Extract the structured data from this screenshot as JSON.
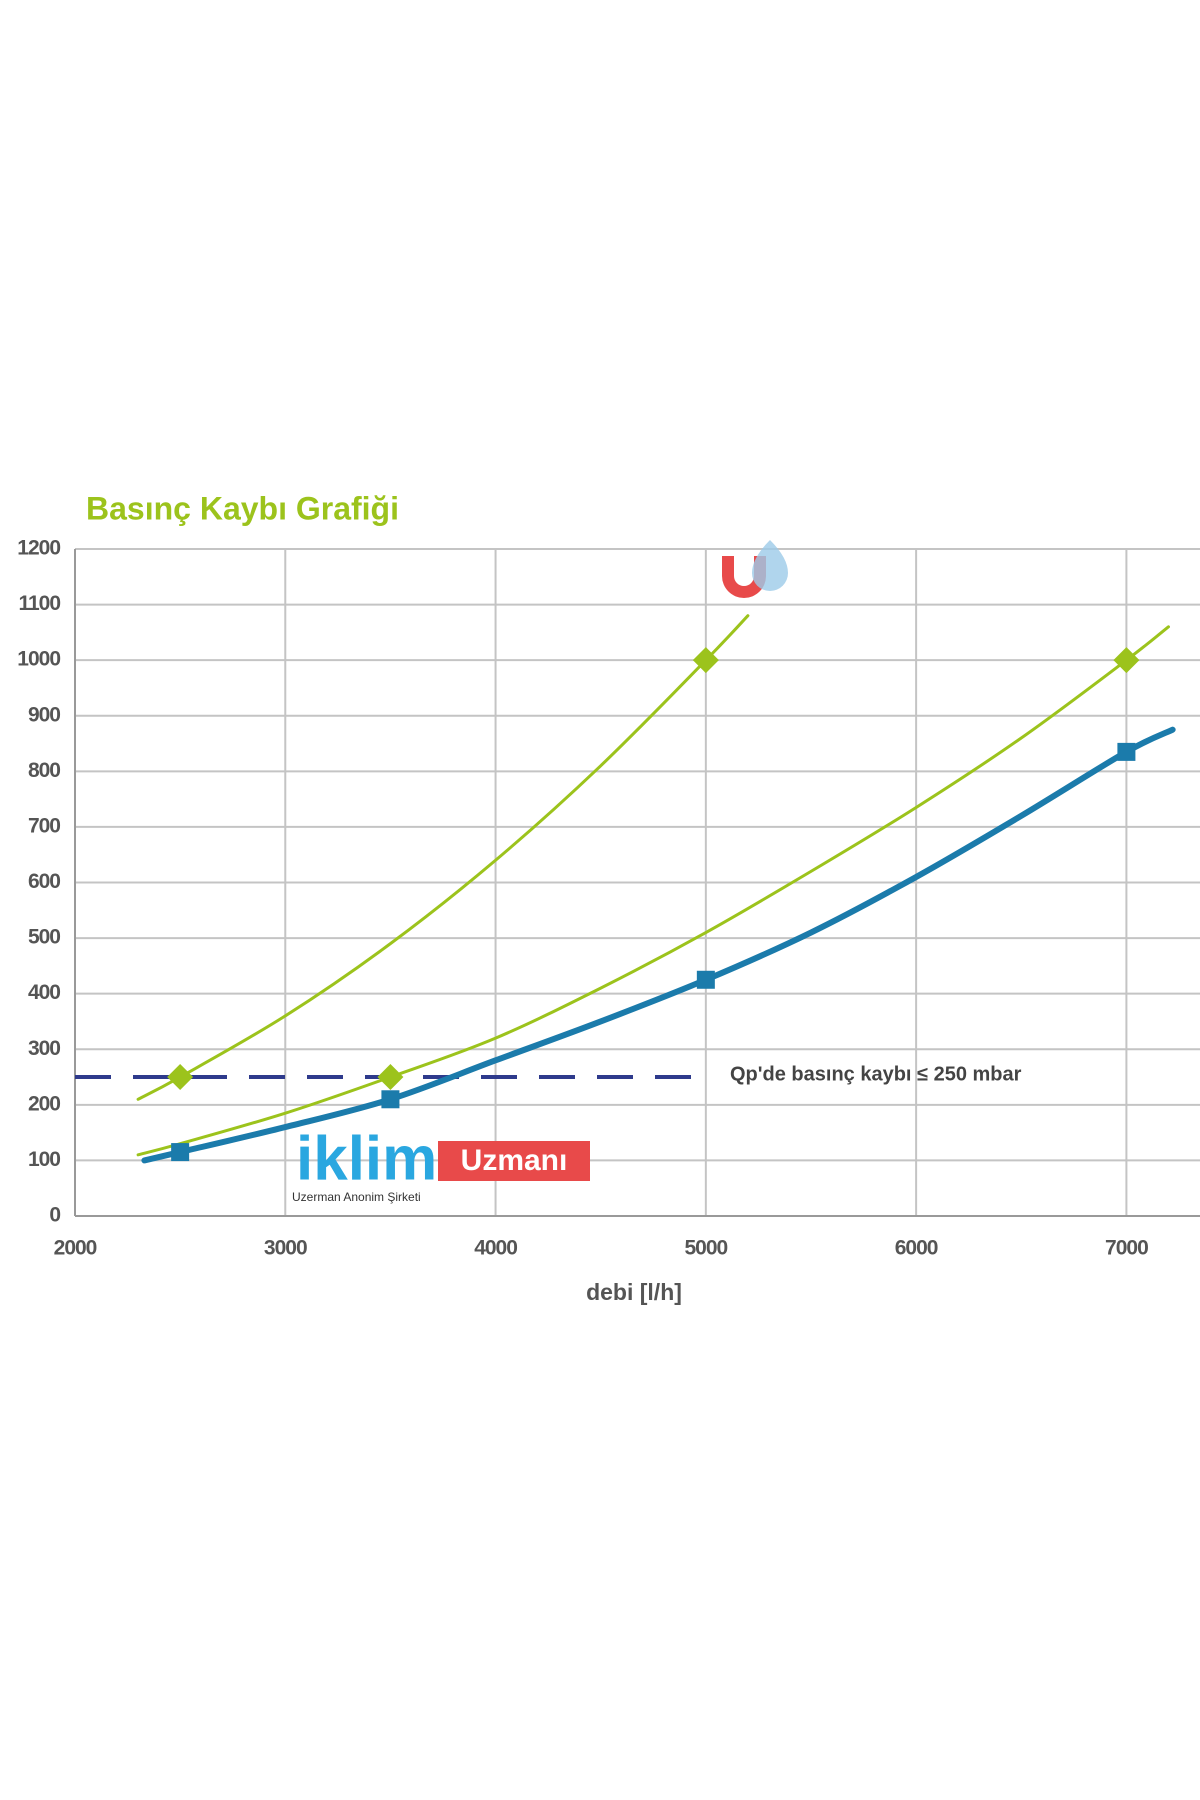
{
  "chart_data": {
    "type": "line",
    "title": "Basınç Kaybı Grafiği",
    "x_label": "debi [l/h]",
    "xlim": [
      2000,
      7350
    ],
    "ylim": [
      0,
      1200
    ],
    "xticks": [
      2000,
      3000,
      4000,
      5000,
      6000,
      7000
    ],
    "yticks": [
      0,
      100,
      200,
      300,
      400,
      500,
      600,
      700,
      800,
      900,
      1000,
      1100,
      1200
    ],
    "grid": true,
    "series": [
      {
        "color": "#9cc31c",
        "width": 3,
        "marker": "diamond",
        "x": [
          2300,
          2500,
          3000,
          3500,
          4000,
          4500,
          5000,
          5200
        ],
        "values": [
          210,
          250,
          360,
          490,
          640,
          810,
          1000,
          1080
        ],
        "markers": {
          "x": [
            2500,
            5000
          ],
          "values": [
            250,
            1000
          ]
        }
      },
      {
        "color": "#9cc31c",
        "width": 3,
        "marker": "diamond",
        "x": [
          2300,
          2500,
          3000,
          3500,
          4000,
          4500,
          5000,
          5500,
          6000,
          6500,
          7000,
          7200
        ],
        "values": [
          110,
          130,
          185,
          250,
          320,
          410,
          510,
          620,
          735,
          860,
          1000,
          1060
        ],
        "markers": {
          "x": [
            3500,
            7000
          ],
          "values": [
            250,
            1000
          ]
        }
      },
      {
        "color": "#1b7bab",
        "width": 6,
        "marker": "square",
        "x": [
          2330,
          2500,
          3000,
          3500,
          4000,
          4500,
          5000,
          5500,
          6000,
          6500,
          7000,
          7220
        ],
        "values": [
          100,
          115,
          160,
          210,
          280,
          350,
          425,
          510,
          610,
          720,
          835,
          875
        ],
        "markers": {
          "x": [
            2500,
            3500,
            5000,
            7000
          ],
          "values": [
            115,
            210,
            425,
            835
          ]
        }
      }
    ],
    "reference_line": {
      "value": 250,
      "x_end": 5000,
      "color": "#2e3a8c",
      "label": "Qp'de basınç kaybı ≤ 250 mbar"
    }
  },
  "watermark": {
    "brand": "iklim",
    "brand_box": "Uzmanı",
    "company": "Uzerman Anonim Şirketi"
  }
}
